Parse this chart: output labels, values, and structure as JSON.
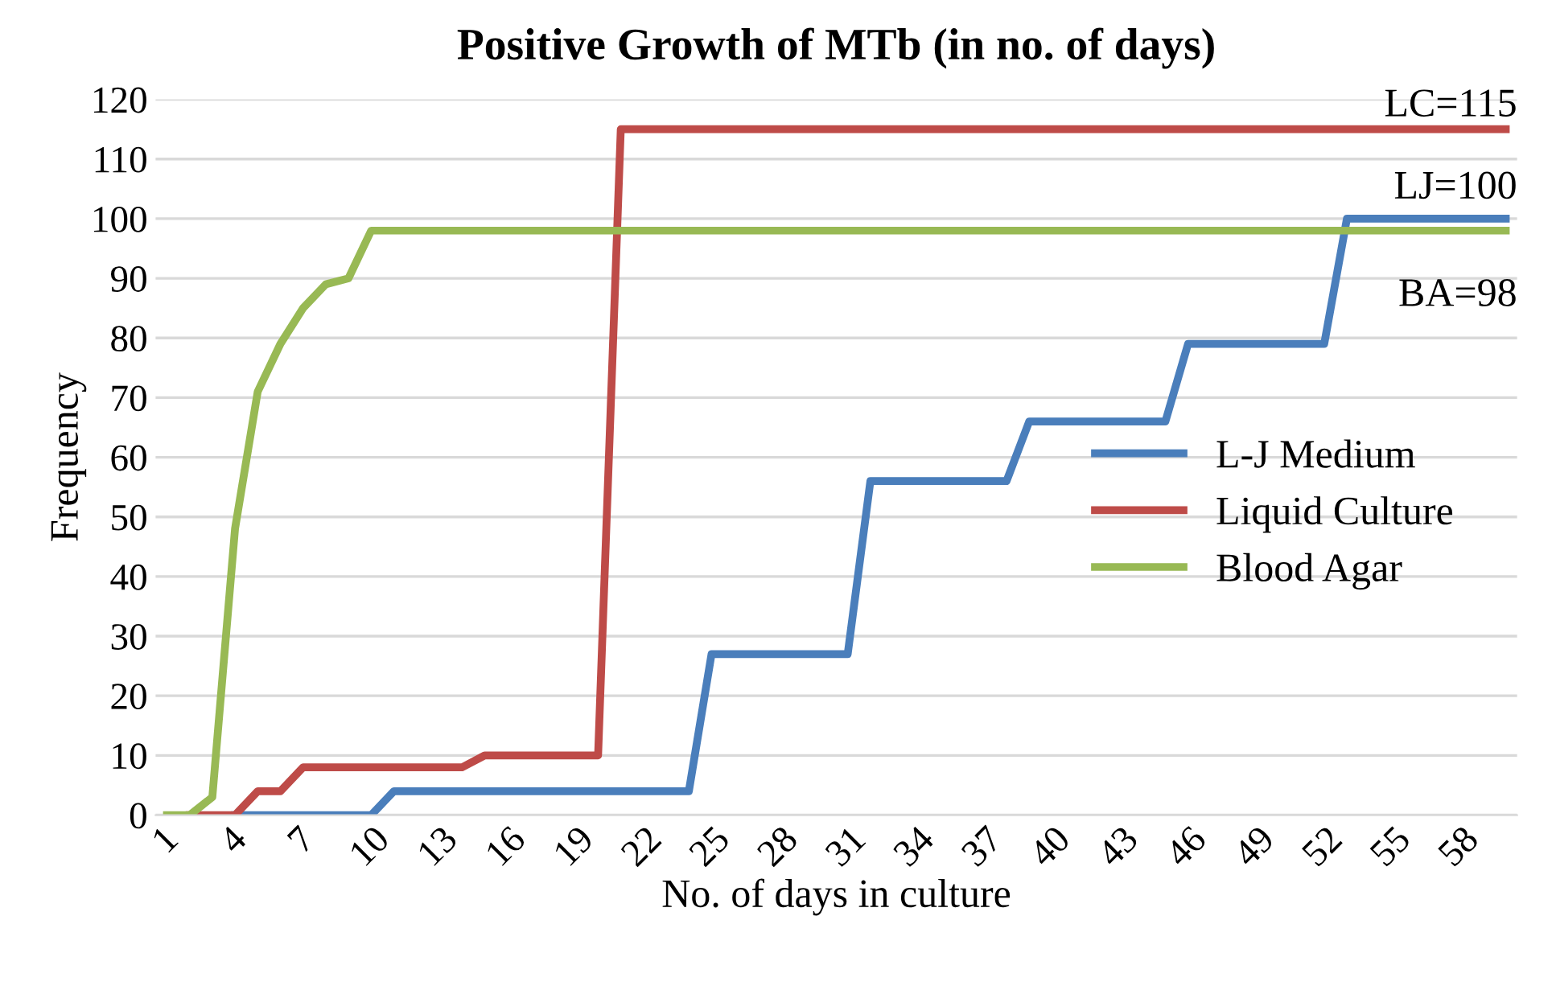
{
  "chart_data": {
    "type": "line",
    "title": "Positive Growth of MTb (in no. of days)",
    "xlabel": "No. of days in culture",
    "ylabel": "Frequency",
    "categories": [
      "1",
      null,
      null,
      "4",
      null,
      null,
      "7",
      null,
      null,
      "10",
      null,
      null,
      "13",
      null,
      null,
      "16",
      null,
      null,
      "19",
      null,
      null,
      "22",
      null,
      null,
      "25",
      null,
      null,
      "28",
      null,
      null,
      "31",
      null,
      null,
      "34",
      null,
      null,
      "37",
      null,
      null,
      "40",
      null,
      null,
      "43",
      null,
      null,
      "46",
      null,
      null,
      "49",
      null,
      null,
      "52",
      null,
      null,
      "55",
      null,
      null,
      "58",
      null,
      null
    ],
    "series": [
      {
        "name": "L-J Medium",
        "color": "#4a7ebb",
        "values": [
          null,
          null,
          null,
          0,
          0,
          0,
          0,
          0,
          0,
          0,
          4,
          4,
          4,
          4,
          4,
          4,
          4,
          4,
          4,
          4,
          4,
          4,
          4,
          4,
          27,
          27,
          27,
          27,
          27,
          27,
          27,
          56,
          56,
          56,
          56,
          56,
          56,
          56,
          66,
          66,
          66,
          66,
          66,
          66,
          66,
          79,
          79,
          79,
          79,
          79,
          79,
          79,
          100,
          100,
          100,
          100,
          100,
          100,
          100,
          100
        ]
      },
      {
        "name": "Liquid Culture",
        "color": "#be4b48",
        "values": [
          null,
          0,
          0,
          0,
          4,
          4,
          8,
          8,
          8,
          8,
          8,
          8,
          8,
          8,
          10,
          10,
          10,
          10,
          10,
          10,
          115,
          115,
          115,
          115,
          115,
          115,
          115,
          115,
          115,
          115,
          115,
          115,
          115,
          115,
          115,
          115,
          115,
          115,
          115,
          115,
          115,
          115,
          115,
          115,
          115,
          115,
          115,
          115,
          115,
          115,
          115,
          115,
          115,
          115,
          115,
          115,
          115,
          115,
          115,
          115
        ]
      },
      {
        "name": "Blood Agar",
        "color": "#98b954",
        "values": [
          0,
          0,
          3,
          48,
          71,
          79,
          85,
          89,
          90,
          98,
          98,
          98,
          98,
          98,
          98,
          98,
          98,
          98,
          98,
          98,
          98,
          98,
          98,
          98,
          98,
          98,
          98,
          98,
          98,
          98,
          98,
          98,
          98,
          98,
          98,
          98,
          98,
          98,
          98,
          98,
          98,
          98,
          98,
          98,
          98,
          98,
          98,
          98,
          98,
          98,
          98,
          98,
          98,
          98,
          98,
          98,
          98,
          98,
          98,
          98
        ]
      }
    ],
    "ylim": [
      0,
      120
    ],
    "yticks": [
      0,
      10,
      20,
      30,
      40,
      50,
      60,
      70,
      80,
      90,
      100,
      110,
      120
    ],
    "grid": "y",
    "legend": "center right",
    "line_style": "solid",
    "marker": "none",
    "annotations": [
      "LC=115",
      "LJ=100",
      "BA=98"
    ]
  }
}
